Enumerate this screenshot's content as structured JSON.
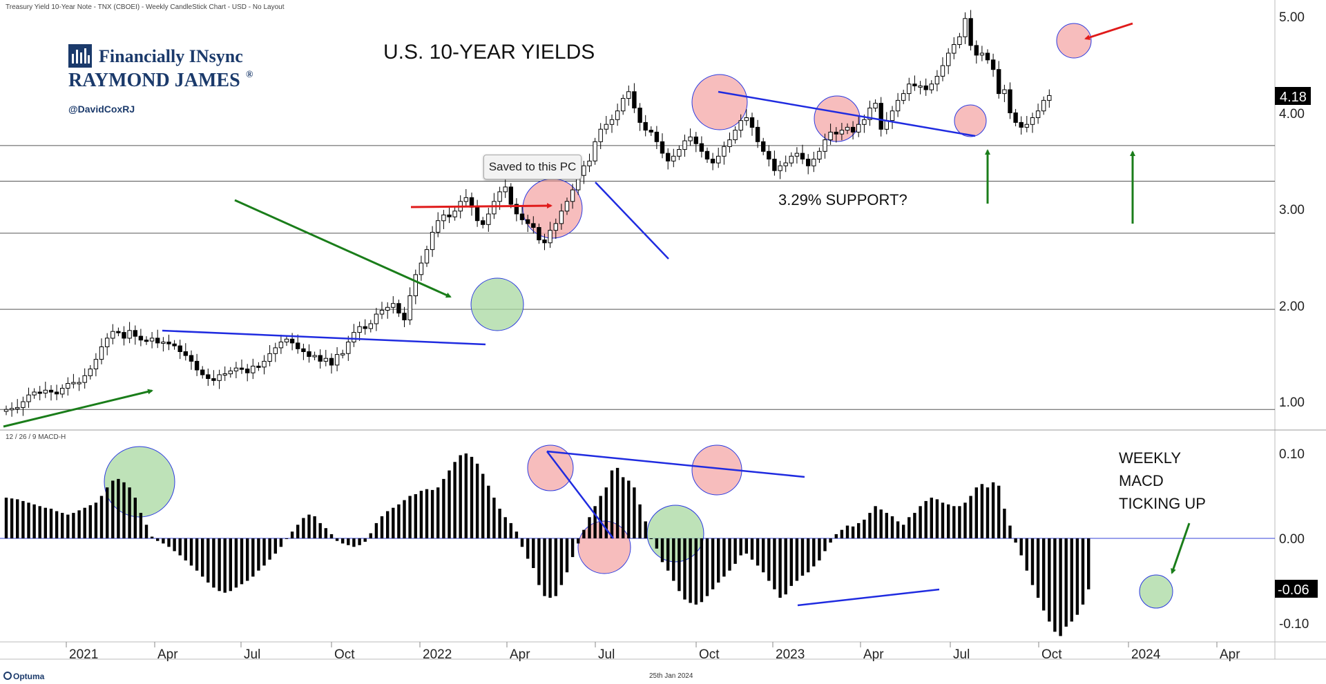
{
  "header": {
    "chart_caption": "Treasury Yield 10-Year Note - TNX (CBOEI) - Weekly CandleStick Chart - USD - No Layout",
    "macd_caption": "12 / 26 / 9 MACD-H",
    "date_footer": "25th Jan 2024",
    "optuma_label": "Optuma"
  },
  "branding": {
    "line1": "Financially INsync",
    "line2": "RAYMOND JAMES",
    "registered": "®",
    "handle": "@DavidCoxRJ"
  },
  "tooltip": {
    "text": "Saved to this PC"
  },
  "colors": {
    "trend_blue": "#1f2be0",
    "arrow_green": "#1a7d1a",
    "arrow_red": "#e01b1b",
    "circle_red_fill": "#f4a7a7",
    "circle_green_fill": "#a8d8a0",
    "candle_dark": "#000000",
    "candle_light": "#ffffff"
  },
  "chart_data": [
    {
      "type": "candlestick",
      "title": "U.S. 10-YEAR YIELDS",
      "ylim": [
        0.7,
        5.05
      ],
      "y_ticks": [
        "1.00",
        "2.00",
        "3.00",
        "4.00",
        "5.00"
      ],
      "x_ticks": [
        "2021",
        "Apr",
        "Jul",
        "Oct",
        "2022",
        "Apr",
        "Jul",
        "Oct",
        "2023",
        "Apr",
        "Jul",
        "Oct",
        "2024",
        "Apr"
      ],
      "last_value": "4.18",
      "annotation": "3.29% SUPPORT?",
      "horizontal_levels": [
        0.92,
        1.96,
        2.75,
        3.29,
        3.66
      ],
      "closes": [
        0.92,
        0.93,
        0.94,
        1.0,
        1.07,
        1.1,
        1.09,
        1.12,
        1.1,
        1.08,
        1.14,
        1.19,
        1.2,
        1.2,
        1.27,
        1.34,
        1.44,
        1.57,
        1.66,
        1.73,
        1.72,
        1.66,
        1.74,
        1.68,
        1.64,
        1.63,
        1.66,
        1.61,
        1.62,
        1.6,
        1.58,
        1.52,
        1.48,
        1.42,
        1.33,
        1.28,
        1.24,
        1.22,
        1.28,
        1.29,
        1.32,
        1.35,
        1.34,
        1.3,
        1.37,
        1.36,
        1.42,
        1.5,
        1.56,
        1.62,
        1.65,
        1.61,
        1.55,
        1.52,
        1.47,
        1.48,
        1.42,
        1.45,
        1.38,
        1.49,
        1.5,
        1.62,
        1.72,
        1.78,
        1.76,
        1.81,
        1.91,
        1.95,
        1.98,
        2.02,
        1.92,
        1.85,
        2.1,
        2.32,
        2.44,
        2.58,
        2.76,
        2.88,
        2.94,
        2.92,
        2.98,
        3.08,
        3.12,
        3.02,
        2.88,
        2.84,
        2.95,
        3.08,
        3.18,
        3.23,
        3.05,
        2.95,
        2.89,
        2.85,
        2.81,
        2.68,
        2.65,
        2.78,
        2.85,
        2.98,
        3.08,
        3.2,
        3.35,
        3.45,
        3.5,
        3.7,
        3.83,
        3.88,
        3.93,
        4.02,
        4.15,
        4.22,
        4.05,
        3.9,
        3.82,
        3.8,
        3.7,
        3.58,
        3.5,
        3.55,
        3.62,
        3.71,
        3.75,
        3.68,
        3.6,
        3.52,
        3.48,
        3.55,
        3.65,
        3.72,
        3.82,
        3.92,
        3.95,
        3.85,
        3.7,
        3.6,
        3.52,
        3.4,
        3.45,
        3.48,
        3.55,
        3.58,
        3.52,
        3.45,
        3.52,
        3.6,
        3.72,
        3.8,
        3.78,
        3.82,
        3.85,
        3.8,
        3.88,
        3.93,
        4.05,
        4.1,
        3.83,
        3.92,
        4.02,
        4.13,
        4.2,
        4.3,
        4.28,
        4.28,
        4.24,
        4.3,
        4.38,
        4.49,
        4.62,
        4.71,
        4.79,
        4.98,
        4.7,
        4.6,
        4.62,
        4.55,
        4.45,
        4.2,
        4.24,
        4.0,
        3.9,
        3.85,
        3.88,
        3.95,
        4.02,
        4.13,
        4.18
      ],
      "highlight_circles_red": [
        "2022-05",
        "2022-10",
        "2023-03",
        "2023-07",
        "2023-10"
      ],
      "highlight_circles_green": [
        "2022-03"
      ]
    },
    {
      "type": "bar",
      "title": "12 / 26 / 9 MACD-H",
      "ylim": [
        -0.12,
        0.12
      ],
      "y_ticks": [
        "0.10",
        "0.00",
        "-0.10"
      ],
      "last_value": "-0.06",
      "annotation": [
        "WEEKLY",
        "MACD",
        "TICKING UP"
      ],
      "values": [
        0.048,
        0.047,
        0.046,
        0.044,
        0.042,
        0.04,
        0.038,
        0.036,
        0.035,
        0.032,
        0.03,
        0.028,
        0.03,
        0.033,
        0.036,
        0.039,
        0.042,
        0.05,
        0.06,
        0.068,
        0.07,
        0.066,
        0.06,
        0.048,
        0.03,
        0.016,
        0.002,
        -0.003,
        -0.006,
        -0.01,
        -0.015,
        -0.02,
        -0.026,
        -0.032,
        -0.038,
        -0.045,
        -0.052,
        -0.058,
        -0.062,
        -0.064,
        -0.062,
        -0.058,
        -0.054,
        -0.05,
        -0.045,
        -0.038,
        -0.032,
        -0.025,
        -0.018,
        -0.01,
        0.0,
        0.008,
        0.016,
        0.024,
        0.028,
        0.026,
        0.018,
        0.012,
        0.005,
        -0.003,
        -0.006,
        -0.008,
        -0.01,
        -0.008,
        -0.004,
        0.006,
        0.018,
        0.026,
        0.032,
        0.036,
        0.04,
        0.045,
        0.05,
        0.052,
        0.056,
        0.058,
        0.057,
        0.06,
        0.07,
        0.08,
        0.09,
        0.098,
        0.1,
        0.096,
        0.088,
        0.076,
        0.062,
        0.048,
        0.035,
        0.025,
        0.018,
        0.008,
        -0.01,
        -0.024,
        -0.035,
        -0.055,
        -0.068,
        -0.07,
        -0.068,
        -0.055,
        -0.04,
        -0.022,
        -0.006,
        0.01,
        0.025,
        0.038,
        0.05,
        0.06,
        0.08,
        0.083,
        0.072,
        0.068,
        0.06,
        0.04,
        0.02,
        0.0,
        -0.012,
        -0.028,
        -0.038,
        -0.05,
        -0.062,
        -0.072,
        -0.076,
        -0.078,
        -0.075,
        -0.068,
        -0.06,
        -0.052,
        -0.045,
        -0.038,
        -0.03,
        -0.02,
        -0.018,
        -0.025,
        -0.032,
        -0.04,
        -0.05,
        -0.06,
        -0.07,
        -0.066,
        -0.056,
        -0.05,
        -0.044,
        -0.04,
        -0.033,
        -0.026,
        -0.015,
        -0.005,
        0.005,
        0.01,
        0.015,
        0.014,
        0.018,
        0.022,
        0.03,
        0.038,
        0.034,
        0.03,
        0.026,
        0.02,
        0.016,
        0.025,
        0.03,
        0.038,
        0.044,
        0.048,
        0.046,
        0.042,
        0.04,
        0.038,
        0.038,
        0.042,
        0.05,
        0.06,
        0.064,
        0.06,
        0.066,
        0.062,
        0.035,
        0.015,
        -0.005,
        -0.02,
        -0.038,
        -0.055,
        -0.07,
        -0.085,
        -0.098,
        -0.11,
        -0.115,
        -0.104,
        -0.098,
        -0.09,
        -0.078,
        -0.06
      ]
    }
  ]
}
